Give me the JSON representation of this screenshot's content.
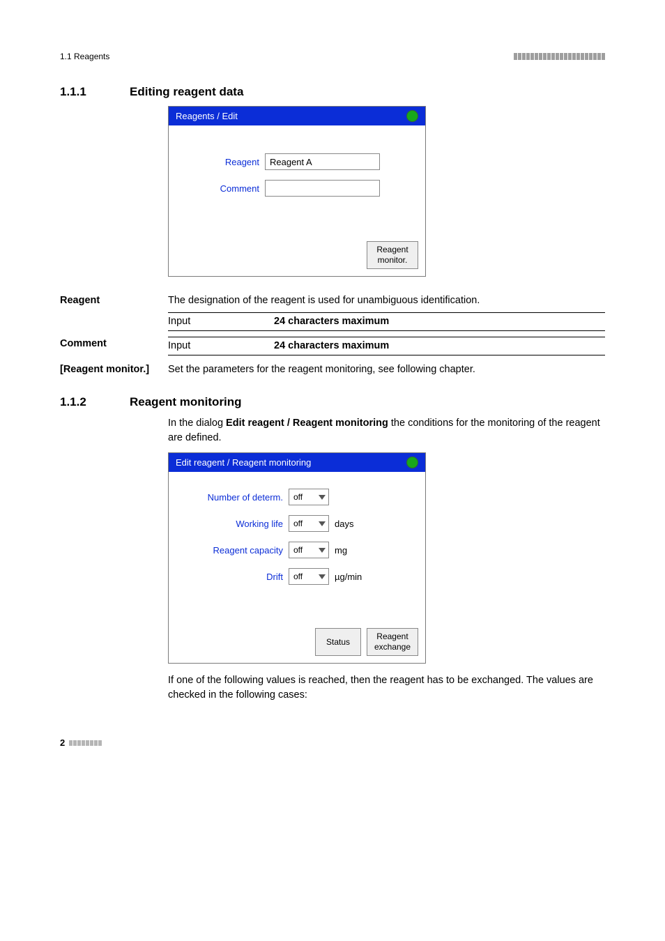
{
  "page": {
    "header_left": "1.1 Reagents",
    "header_tick_count": 22,
    "footer_page": "2",
    "footer_tick_count": 8
  },
  "section_1_1_1": {
    "number": "1.1.1",
    "title": "Editing reagent data"
  },
  "dialog1": {
    "title": "Reagents / Edit",
    "field_reagent_label": "Reagent",
    "field_reagent_value": "Reagent A",
    "field_comment_label": "Comment",
    "field_comment_value": "",
    "button_label": "Reagent\nmonitor."
  },
  "reagent_block": {
    "heading": "Reagent",
    "desc": "The designation of the reagent is used for unambiguous identification.",
    "spec_left": "Input",
    "spec_right": "24 characters maximum"
  },
  "comment_block": {
    "heading": "Comment",
    "spec_left": "Input",
    "spec_right": "24 characters maximum"
  },
  "monitor_block": {
    "heading": "[Reagent monitor.]",
    "desc": "Set the parameters for the reagent monitoring, see following chapter."
  },
  "section_1_1_2": {
    "number": "1.1.2",
    "title": "Reagent monitoring",
    "intro_a": "In the dialog ",
    "intro_bold": "Edit reagent / Reagent monitoring",
    "intro_b": " the conditions for the monitoring of the reagent are defined."
  },
  "dialog2": {
    "title": "Edit reagent / Reagent monitoring",
    "rows": [
      {
        "label": "Number of determ.",
        "value": "off",
        "unit": ""
      },
      {
        "label": "Working life",
        "value": "off",
        "unit": "days"
      },
      {
        "label": "Reagent capacity",
        "value": "off",
        "unit": "mg"
      },
      {
        "label": "Drift",
        "value": "off",
        "unit": "µg/min"
      }
    ],
    "btn_status": "Status",
    "btn_exchange": "Reagent\nexchange"
  },
  "closing_para": "If one of the following values is reached, then the reagent has to be exchanged. The values are checked in the following cases:"
}
